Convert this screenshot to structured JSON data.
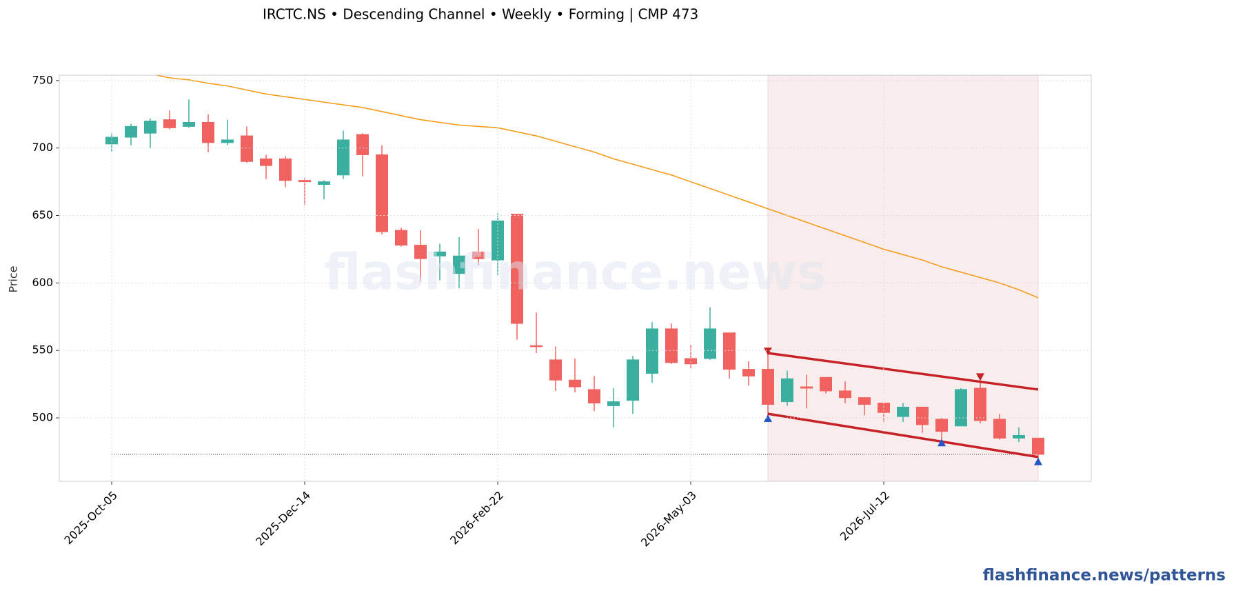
{
  "chart_data": {
    "type": "candlestick",
    "title": "IRCTC.NS  •  Descending Channel  •  Weekly  •  Forming  |  CMP 473",
    "y_label": "Price",
    "watermark": "flashfinance.news",
    "footer": "flashfinance.news/patterns",
    "categories": [
      "2025-Oct-05",
      null,
      null,
      null,
      null,
      null,
      null,
      null,
      null,
      null,
      "2025-Dec-14",
      null,
      null,
      null,
      null,
      null,
      null,
      null,
      null,
      null,
      "2026-Feb-22",
      null,
      null,
      null,
      null,
      null,
      null,
      null,
      null,
      null,
      "2026-May-03",
      null,
      null,
      null,
      null,
      null,
      null,
      null,
      null,
      null,
      "2026-Jul-12",
      null,
      null,
      null,
      null,
      null,
      null,
      null,
      null
    ],
    "open": [
      703,
      708,
      711,
      721,
      716,
      719,
      704,
      709,
      692,
      692,
      676,
      673,
      680,
      710,
      695,
      639,
      628,
      620,
      607,
      623,
      617,
      651,
      553.5,
      543,
      528,
      521,
      509,
      513,
      533,
      566,
      544,
      544,
      563,
      536,
      536,
      512,
      523,
      530,
      520,
      515,
      511,
      501,
      508,
      499,
      494,
      522,
      499,
      485,
      485
    ],
    "high": [
      711,
      718,
      722,
      728,
      736,
      725,
      721,
      716,
      695,
      694,
      678,
      676,
      713,
      711,
      702,
      641,
      639,
      629,
      634,
      640,
      652,
      651,
      578,
      553,
      544,
      531,
      522,
      546,
      571,
      570,
      554,
      582,
      563,
      542,
      549,
      535,
      532,
      530,
      527,
      515,
      511,
      511,
      508,
      500,
      522,
      526,
      503,
      493,
      485
    ],
    "low": [
      697,
      702,
      700,
      714,
      715,
      697,
      702,
      689,
      677,
      671,
      658,
      662,
      677,
      679,
      636,
      627,
      601,
      602,
      596,
      613,
      606,
      558,
      548,
      520,
      519,
      505,
      493,
      503,
      526,
      540,
      537,
      543,
      529,
      524,
      501,
      509,
      507,
      518,
      511,
      502,
      497,
      497,
      489,
      481,
      494,
      496,
      484,
      482,
      470
    ],
    "close": [
      708,
      716,
      720,
      715,
      719,
      704,
      706,
      690,
      687,
      676,
      675,
      675,
      706,
      695,
      638,
      628,
      618,
      623,
      620,
      618,
      646,
      570,
      553,
      528,
      523,
      511,
      512,
      543,
      566,
      541,
      540,
      566,
      536,
      531,
      510,
      529,
      522,
      520,
      515,
      510,
      504,
      508,
      495,
      490,
      521,
      498,
      485,
      487,
      473
    ],
    "up_color": "#3aaf9f",
    "down_color": "#f0625f",
    "ma": {
      "color": "#f59c1a",
      "values": [
        null,
        null,
        755,
        752,
        750.5,
        748,
        746,
        743,
        740,
        738,
        736,
        734,
        732,
        730,
        727,
        724,
        721,
        719,
        717,
        716,
        715,
        712,
        709,
        705,
        701,
        697,
        692,
        688,
        684,
        680,
        675,
        670,
        665,
        660,
        655,
        650,
        645,
        640,
        635,
        630,
        625,
        621,
        617,
        612,
        608,
        604,
        600,
        595,
        589
      ]
    },
    "pattern_zone": {
      "x": [
        34,
        48
      ],
      "color": "#f9ecec"
    },
    "channel": {
      "color": "#c62127",
      "upper": {
        "x": [
          34,
          48
        ],
        "values": [
          548,
          521
        ]
      },
      "lower": {
        "x": [
          34,
          48
        ],
        "values": [
          503,
          471
        ]
      }
    },
    "peaks": {
      "color": "#c62127",
      "x": [
        34,
        45
      ],
      "values": [
        549,
        530
      ]
    },
    "troughs": {
      "color": "#2456c8",
      "x": [
        34,
        43,
        48
      ],
      "values": [
        500,
        482,
        468
      ]
    },
    "cmp_line": {
      "value": 473,
      "x": [
        0,
        48
      ]
    },
    "ylim": [
      453,
      754
    ],
    "yticks": [
      500,
      550,
      600,
      650,
      700,
      750
    ],
    "grid": true
  }
}
